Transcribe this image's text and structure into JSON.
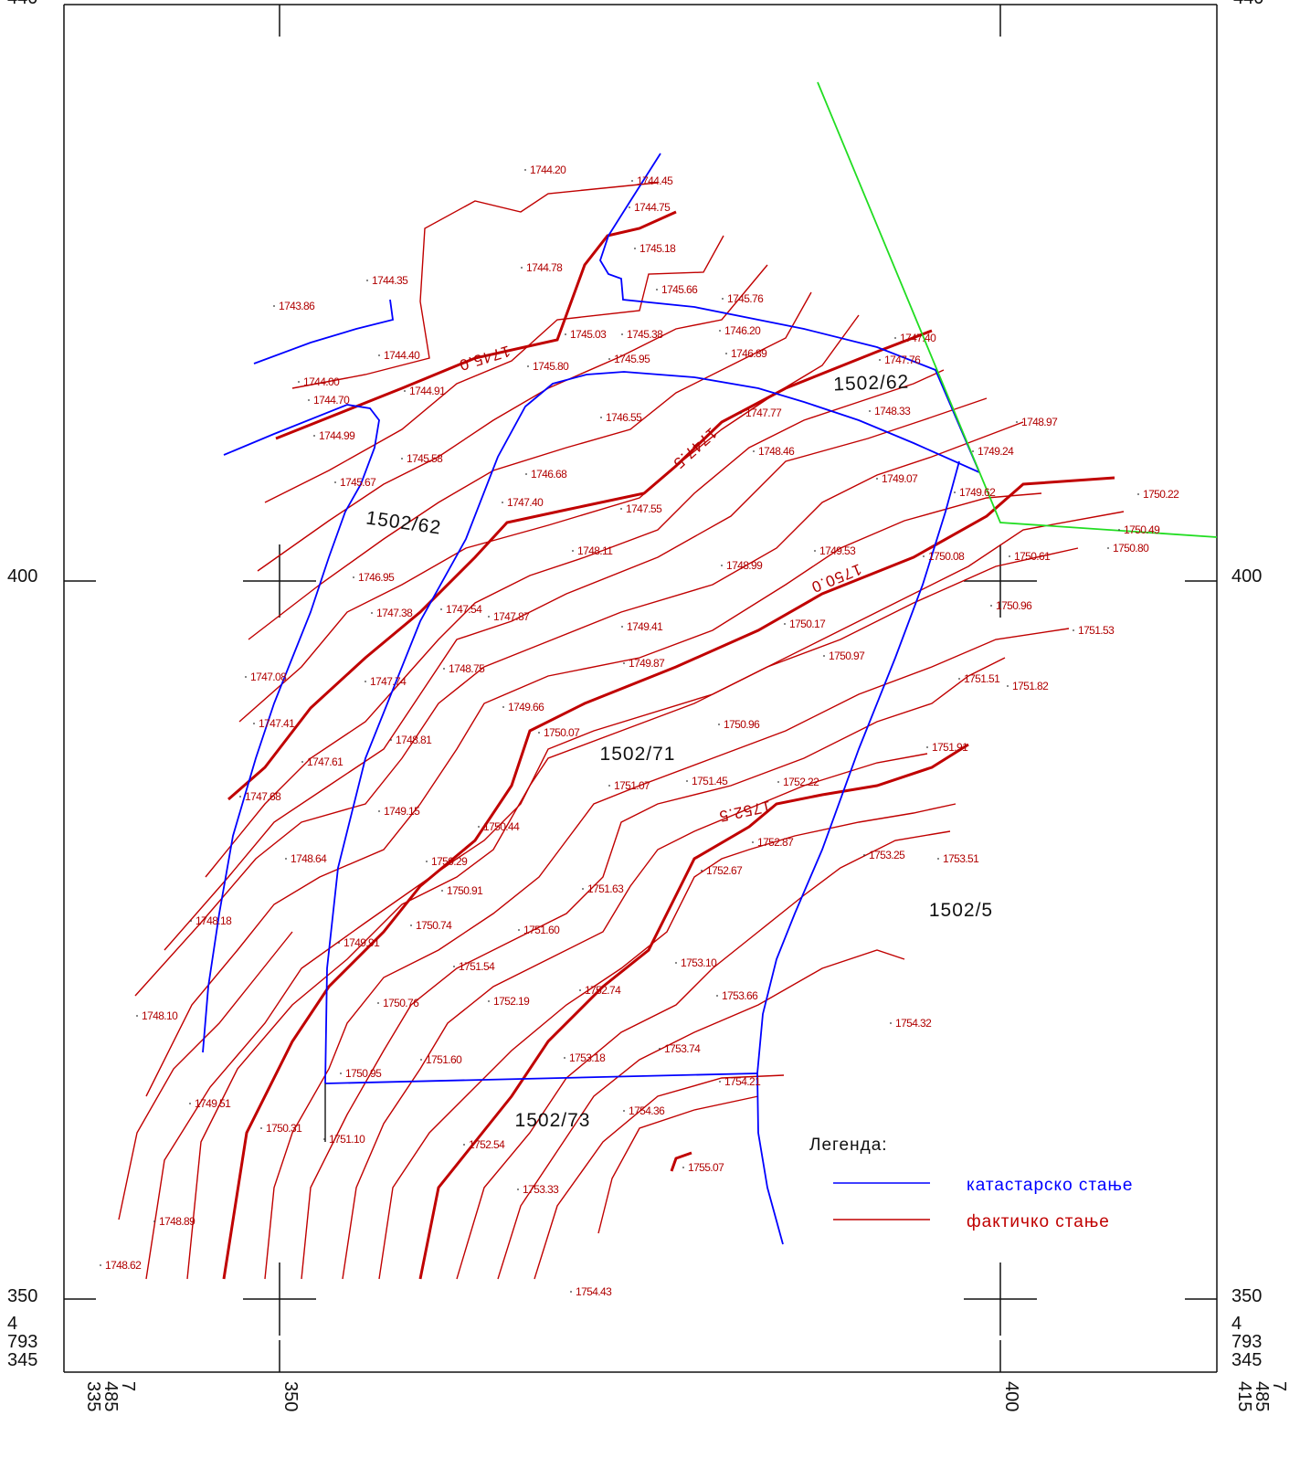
{
  "coordinates": {
    "top_left": "440",
    "top_right": "440",
    "left": [
      "400",
      "350",
      "4",
      "793",
      "345"
    ],
    "right": [
      "400",
      "350",
      "4",
      "793",
      "345"
    ],
    "bottom_left": [
      "7",
      "485",
      "335"
    ],
    "bottom": [
      "350",
      "400"
    ],
    "bottom_right": [
      "7",
      "485",
      "415"
    ]
  },
  "spot_heights": [
    "1744.20",
    "1744.45",
    "1744.75",
    "1745.18",
    "1744.78",
    "1744.35",
    "1743.86",
    "1745.66",
    "1745.76",
    "1745.03",
    "1745.38",
    "1746.20",
    "1746.89",
    "1744.40",
    "1745.95",
    "1745.80",
    "1744.00",
    "1744.91",
    "1744.70",
    "1747.40",
    "1747.76",
    "1748.33",
    "1747.77",
    "1746.55",
    "1748.97",
    "1744.99",
    "1748.46",
    "1749.24",
    "1745.58",
    "1746.68",
    "1749.07",
    "1745.67",
    "1749.62",
    "1750.22",
    "1747.40",
    "1747.55",
    "1750.49",
    "1748.11",
    "1749.53",
    "1750.80",
    "1750.08",
    "1750.61",
    "1748.99",
    "1746.95",
    "1750.96",
    "1747.38",
    "1747.54",
    "1747.87",
    "1750.17",
    "1749.41",
    "1751.53",
    "1750.97",
    "1749.87",
    "1748.75",
    "1747.08",
    "1747.74",
    "1751.51",
    "1751.82",
    "1749.66",
    "1747.41",
    "1750.96",
    "1750.07",
    "1748.81",
    "1751.91",
    "1747.61",
    "1751.45",
    "1751.07",
    "1752.22",
    "1747.68",
    "1749.15",
    "1750.44",
    "1752.87",
    "1753.25",
    "1753.51",
    "1748.64",
    "1750.29",
    "1752.67",
    "1750.91",
    "1751.63",
    "1748.18",
    "1750.74",
    "1751.60",
    "1749.91",
    "1753.10",
    "1751.54",
    "1752.74",
    "1753.66",
    "1752.19",
    "1750.76",
    "1748.10",
    "1754.32",
    "1753.74",
    "1753.18",
    "1751.60",
    "1750.95",
    "1754.21",
    "1749.51",
    "1754.36",
    "1750.31",
    "1751.10",
    "1752.54",
    "1755.07",
    "1753.33",
    "1748.89",
    "1748.62",
    "1754.43"
  ],
  "contour_labels": [
    "1745.0",
    "1747.5",
    "1750.0",
    "1752.5"
  ],
  "parcels": [
    "1502/62",
    "1502/62",
    "1502/71",
    "1502/73",
    "1502/5"
  ],
  "legend": {
    "title": "Легенда:",
    "items": [
      {
        "label": "катастарско стање",
        "color": "#0000ff"
      },
      {
        "label": "фактичко стање",
        "color": "#c00000"
      }
    ]
  }
}
